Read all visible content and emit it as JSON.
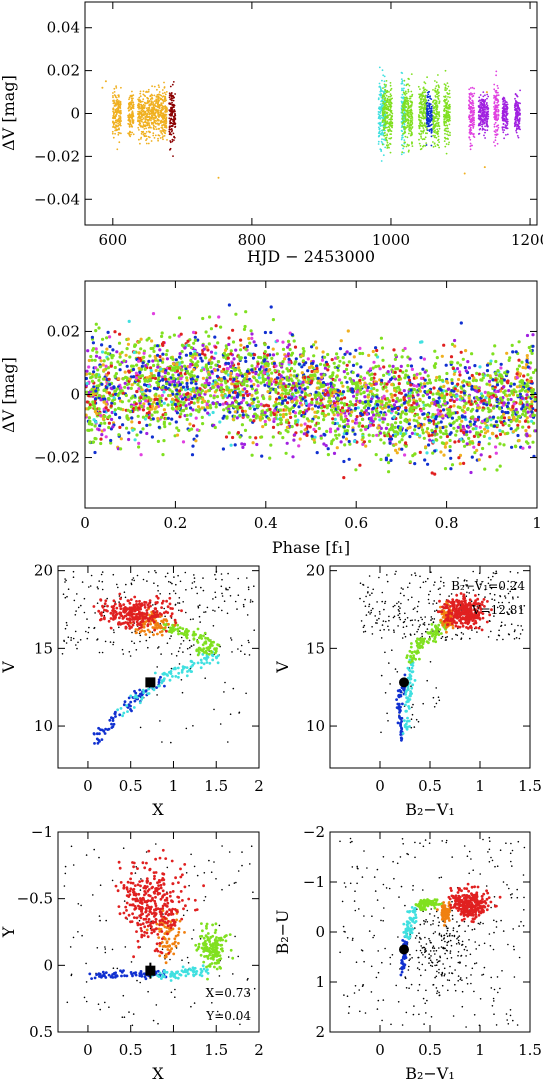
{
  "colors": {
    "black": "#000000",
    "gold": "#f0b020",
    "darkred": "#8b0000",
    "cyan": "#40e0e0",
    "lime": "#80e020",
    "blue": "#1030d0",
    "purple": "#a020e0",
    "magenta": "#e040e0",
    "orange": "#f08010",
    "red": "#e02020",
    "grey": "#505050"
  },
  "chart_data": [
    {
      "type": "scatter",
      "xlabel": "HJD − 2453000",
      "ylabel": "ΔV [mag]",
      "xlim": [
        560,
        1210
      ],
      "ylim": [
        0.052,
        -0.052
      ],
      "xticks": [
        600,
        800,
        1000,
        1200
      ],
      "xtick_labels": [
        "600",
        "800",
        "1000",
        "1200"
      ],
      "yticks": [
        -0.04,
        -0.02,
        0,
        0.02,
        0.04
      ],
      "ytick_labels": [
        "−0.04",
        "−0.02",
        "0",
        "0.02",
        "0.04"
      ],
      "groups": [
        {
          "color": "gold",
          "x_ranges": [
            [
              600,
              612
            ],
            [
              622,
              630
            ],
            [
              636,
              678
            ]
          ],
          "amp": 0.014
        },
        {
          "color": "darkred",
          "x_ranges": [
            [
              681,
              690
            ]
          ],
          "amp": 0.016
        },
        {
          "color": "cyan",
          "x_ranges": [
            [
              982,
              992
            ],
            [
              1015,
              1020
            ]
          ],
          "amp": 0.022
        },
        {
          "color": "lime",
          "x_ranges": [
            [
              988,
              1002
            ],
            [
              1016,
              1031
            ],
            [
              1040,
              1052
            ],
            [
              1060,
              1070
            ],
            [
              1076,
              1085
            ]
          ],
          "amp": 0.018
        },
        {
          "color": "blue",
          "x_ranges": [
            [
              1051,
              1059
            ]
          ],
          "amp": 0.013
        },
        {
          "color": "magenta",
          "x_ranges": [
            [
              1112,
              1120
            ],
            [
              1148,
              1155
            ]
          ],
          "amp": 0.016
        },
        {
          "color": "purple",
          "x_ranges": [
            [
              1126,
              1140
            ],
            [
              1160,
              1168
            ],
            [
              1178,
              1186
            ]
          ],
          "amp": 0.011
        }
      ]
    },
    {
      "type": "scatter",
      "xlabel": "Phase [f₁]",
      "ylabel": "ΔV [mag]",
      "xlim": [
        0,
        1
      ],
      "ylim": [
        0.036,
        -0.036
      ],
      "xticks": [
        0,
        0.2,
        0.4,
        0.6,
        0.8,
        1
      ],
      "xtick_labels": [
        "0",
        "0.2",
        "0.4",
        "0.6",
        "0.8",
        "1"
      ],
      "yticks": [
        -0.02,
        0,
        0.02
      ],
      "ytick_labels": [
        "−0.02",
        "0",
        "0.02"
      ],
      "sine_amplitude": 0.004,
      "series_colors": [
        "lime",
        "blue",
        "purple",
        "magenta",
        "gold",
        "cyan",
        "red"
      ]
    },
    {
      "type": "scatter",
      "xlabel": "X",
      "ylabel": "V",
      "xlim": [
        -0.35,
        2
      ],
      "ylim": [
        20.3,
        7.3
      ],
      "xticks": [
        0,
        0.5,
        1,
        1.5,
        2
      ],
      "xtick_labels": [
        "0",
        "0.5",
        "1",
        "1.5",
        "2"
      ],
      "yticks": [
        10,
        15,
        20
      ],
      "ytick_labels": [
        "10",
        "15",
        "20"
      ],
      "star": {
        "x": 0.73,
        "y": 12.81
      }
    },
    {
      "type": "scatter",
      "xlabel": "B₂−V₁",
      "ylabel": "V",
      "xlim": [
        -0.5,
        1.5
      ],
      "ylim": [
        20.3,
        7.3
      ],
      "xticks": [
        0,
        0.5,
        1,
        1.5
      ],
      "xtick_labels": [
        "0",
        "0.5",
        "1",
        "1.5"
      ],
      "yticks": [
        10,
        15,
        20
      ],
      "ytick_labels": [
        "10",
        "15",
        "20"
      ],
      "star": {
        "x": 0.24,
        "y": 12.81
      },
      "annotations": [
        "B₂−V₁=0.24",
        "V=12.81"
      ]
    },
    {
      "type": "scatter",
      "xlabel": "X",
      "ylabel": "Y",
      "xlim": [
        -0.35,
        2
      ],
      "ylim": [
        -1,
        0.5
      ],
      "xticks": [
        0,
        0.5,
        1,
        1.5,
        2
      ],
      "xtick_labels": [
        "0",
        "0.5",
        "1",
        "1.5",
        "2"
      ],
      "yticks": [
        -1,
        -0.5,
        0,
        0.5
      ],
      "ytick_labels": [
        "−1",
        "−0.5",
        "0",
        "0.5"
      ],
      "star": {
        "x": 0.73,
        "y": 0.04
      },
      "annotations": [
        "X=0.73",
        "Y=0.04"
      ]
    },
    {
      "type": "scatter",
      "xlabel": "B₂−V₁",
      "ylabel": "B₂−U",
      "xlim": [
        -0.5,
        1.5
      ],
      "ylim": [
        -2,
        2
      ],
      "xticks": [
        0,
        0.5,
        1,
        1.5
      ],
      "xtick_labels": [
        "0",
        "0.5",
        "1",
        "1.5"
      ],
      "yticks": [
        -2,
        -1,
        0,
        1,
        2
      ],
      "ytick_labels": [
        "−2",
        "−1",
        "0",
        "1",
        "2"
      ],
      "star": {
        "x": 0.24,
        "y": 0.35
      }
    }
  ]
}
